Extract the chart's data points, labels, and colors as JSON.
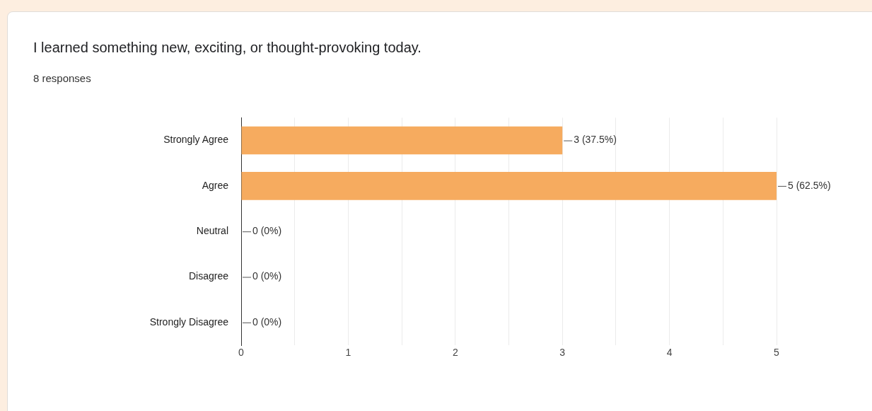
{
  "chart_data": {
    "type": "bar",
    "orientation": "horizontal",
    "title": "I learned something new, exciting, or thought-provoking today.",
    "subtitle": "8 responses",
    "categories": [
      "Strongly Agree",
      "Agree",
      "Neutral",
      "Disagree",
      "Strongly Disagree"
    ],
    "values": [
      3,
      5,
      0,
      0,
      0
    ],
    "color": "#f6ab5f",
    "value_labels": [
      "3 (37.5%)",
      "5 (62.5%)",
      "0 (0%)",
      "0 (0%)",
      "0 (0%)"
    ],
    "xlim": [
      0,
      5
    ],
    "xticks": [
      0,
      {
        "value": 0.5,
        "label": null
      },
      1,
      {
        "value": 1.5,
        "label": null
      },
      2,
      {
        "value": 2.5,
        "label": null
      },
      3,
      {
        "value": 3.5,
        "label": null
      },
      4,
      {
        "value": 4.5,
        "label": null
      },
      5
    ],
    "grid": "x",
    "legend": false
  }
}
